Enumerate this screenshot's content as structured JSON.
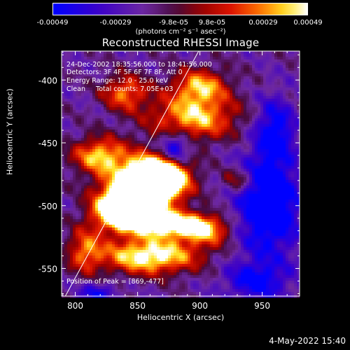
{
  "colorbar": {
    "ticks": [
      "-0.00049",
      "-0.00029",
      "-9.8e-05",
      "9.8e-05",
      "0.00029",
      "0.00049"
    ],
    "units": "(photons cm⁻² s⁻¹ asec⁻²)"
  },
  "chart_data": {
    "type": "heatmap",
    "title": "Reconstructed RHESSI Image",
    "xlabel": "Heliocentric X (arcsec)",
    "ylabel": "Heliocentric Y (arcsec)",
    "xlim": [
      789,
      980
    ],
    "ylim": [
      -572,
      -377
    ],
    "x_ticks": [
      "800",
      "850",
      "900",
      "950"
    ],
    "y_ticks": [
      "-400",
      "-450",
      "-500",
      "-550"
    ],
    "color_range": [
      -0.00049,
      0.00049
    ],
    "peak": [
      869,
      -477
    ],
    "limb_line": [
      [
        792,
        -572
      ],
      [
        899,
        -377
      ]
    ],
    "annotations": {
      "time_range": "24-Dec-2002 18:35:56.000 to 18:41:56.000",
      "detectors": "Detectors: 3F 4F 5F 6F 7F 8F, Att 0",
      "energy": "Energy Range: 12.0 - 25.0 keV",
      "method": "Clean     Total counts: 7.05E+03",
      "peak_label": "Position of Peak = [869,-477]"
    }
  },
  "footer": {
    "date": "4-May-2022 15:40"
  }
}
